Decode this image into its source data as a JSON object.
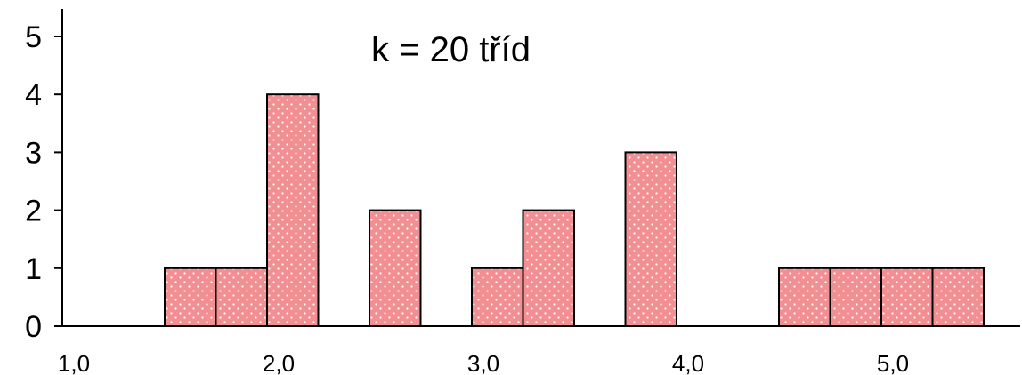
{
  "chart_data": {
    "type": "bar",
    "subtype": "histogram",
    "annotation": "k = 20 tříd",
    "xlabel": "",
    "ylabel": "",
    "xlim": [
      1.0,
      6.0
    ],
    "ylim": [
      0,
      5
    ],
    "x_ticks": [
      {
        "value": 1.0,
        "label": "1,0"
      },
      {
        "value": 2.0,
        "label": "2,0"
      },
      {
        "value": 3.0,
        "label": "3,0"
      },
      {
        "value": 4.0,
        "label": "4,0"
      },
      {
        "value": 5.0,
        "label": "5,0"
      }
    ],
    "y_ticks": [
      {
        "value": 0,
        "label": "0"
      },
      {
        "value": 1,
        "label": "1"
      },
      {
        "value": 2,
        "label": "2"
      },
      {
        "value": 3,
        "label": "3"
      },
      {
        "value": 4,
        "label": "4"
      },
      {
        "value": 5,
        "label": "5"
      }
    ],
    "bins": [
      {
        "start": 1.5,
        "end": 1.75,
        "count": 1
      },
      {
        "start": 1.75,
        "end": 2.0,
        "count": 1
      },
      {
        "start": 2.0,
        "end": 2.25,
        "count": 4
      },
      {
        "start": 2.5,
        "end": 2.75,
        "count": 2
      },
      {
        "start": 3.0,
        "end": 3.25,
        "count": 1
      },
      {
        "start": 3.25,
        "end": 3.5,
        "count": 2
      },
      {
        "start": 3.75,
        "end": 4.0,
        "count": 3
      },
      {
        "start": 4.5,
        "end": 4.75,
        "count": 1
      },
      {
        "start": 4.75,
        "end": 5.0,
        "count": 1
      },
      {
        "start": 5.0,
        "end": 5.25,
        "count": 1
      },
      {
        "start": 5.25,
        "end": 5.5,
        "count": 1
      }
    ],
    "bar_color": "#f28f93",
    "dot_color": "#ffffff",
    "edge_color": "#000000",
    "grid": false,
    "legend": "none"
  }
}
